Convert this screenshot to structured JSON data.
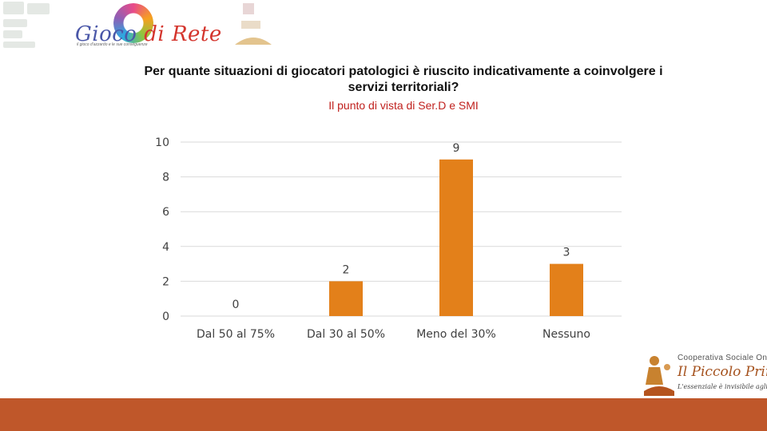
{
  "header": {
    "brand_prefix": "Gioco",
    "brand_suffix": " di Rete",
    "brand_tagline": "il gioco d'azzardo e le sue conseguenze"
  },
  "chart_data": {
    "type": "bar",
    "title": "Per quante situazioni di giocatori patologici è riuscito indicativamente a coinvolgere i servizi territoriali?",
    "subtitle": "Il punto di vista di Ser.D e SMI",
    "categories": [
      "Dal 50 al 75%",
      "Dal 30 al  50%",
      "Meno del 30%",
      "Nessuno"
    ],
    "values": [
      0,
      2,
      9,
      3
    ],
    "data_labels": [
      "0",
      "2",
      "9",
      "3"
    ],
    "ylim": [
      0,
      10
    ],
    "yticks": [
      "0",
      "2",
      "4",
      "6",
      "8",
      "10"
    ],
    "grid": true,
    "legend": "none",
    "colors": {
      "bar": "#e3801a",
      "grid": "#d9d9d9",
      "text": "#404040"
    }
  },
  "footer": {
    "org_name": "Cooperativa Sociale Onlus",
    "org_brand": "Il Piccolo Principe",
    "org_motto": "L'essenziale è invisibile agli occhi",
    "bar_color": "#bf572a"
  }
}
